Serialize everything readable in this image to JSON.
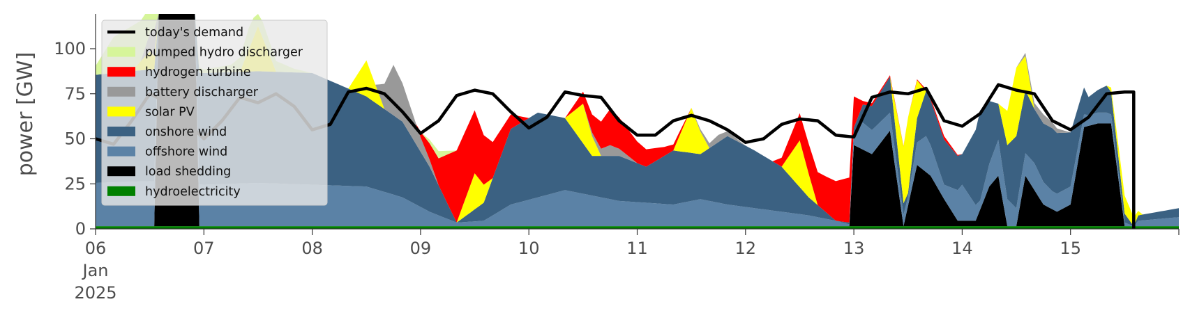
{
  "chart_data": {
    "type": "area",
    "title": "",
    "xlabel": "",
    "ylabel": "power [GW]",
    "ylim": [
      0,
      120
    ],
    "y_ticks": [
      0,
      25,
      50,
      75,
      100
    ],
    "x_start": "2025-01-06",
    "x_end": "2025-01-16",
    "x_ticks": [
      {
        "date": "2025-01-06",
        "label": "06",
        "sub": [
          "Jan",
          "2025"
        ]
      },
      {
        "date": "2025-01-07",
        "label": "07"
      },
      {
        "date": "2025-01-08",
        "label": "08"
      },
      {
        "date": "2025-01-09",
        "label": "09"
      },
      {
        "date": "2025-01-10",
        "label": "10"
      },
      {
        "date": "2025-01-11",
        "label": "11"
      },
      {
        "date": "2025-01-12",
        "label": "12"
      },
      {
        "date": "2025-01-13",
        "label": "13"
      },
      {
        "date": "2025-01-14",
        "label": "14"
      },
      {
        "date": "2025-01-15",
        "label": "15"
      }
    ],
    "legend_position": "top-left",
    "legend": [
      {
        "name": "today's demand",
        "color": "#000000",
        "kind": "line"
      },
      {
        "name": "pumped hydro discharger",
        "color": "#d6f59a",
        "kind": "patch"
      },
      {
        "name": "hydrogen turbine",
        "color": "#ff0000",
        "kind": "patch"
      },
      {
        "name": "battery discharger",
        "color": "#999999",
        "kind": "patch"
      },
      {
        "name": "solar PV",
        "color": "#ffff00",
        "kind": "patch"
      },
      {
        "name": "onshore wind",
        "color": "#3b6182",
        "kind": "patch"
      },
      {
        "name": "offshore wind",
        "color": "#5b82a6",
        "kind": "patch"
      },
      {
        "name": "load shedding",
        "color": "#000000",
        "kind": "patch"
      },
      {
        "name": "hydroelectricity",
        "color": "#008000",
        "kind": "patch"
      }
    ],
    "stack_order": [
      "hydroelectricity",
      "load shedding",
      "offshore wind",
      "onshore wind",
      "solar PV",
      "battery discharger",
      "hydrogen turbine",
      "pumped hydro discharger"
    ],
    "series": [
      {
        "name": "hydroelectricity",
        "color": "#008000",
        "x": [
          "2025-01-06 00:00",
          "2025-01-16 00:00"
        ],
        "values": [
          1.5,
          1.5
        ]
      },
      {
        "name": "load shedding",
        "color": "#000000",
        "x": [
          "2025-01-06 00:00",
          "2025-01-06 13:00",
          "2025-01-06 14:00",
          "2025-01-06 22:00",
          "2025-01-06 23:00",
          "2025-01-12 23:00",
          "2025-01-13 00:00",
          "2025-01-13 04:00",
          "2025-01-13 08:00",
          "2025-01-13 11:00",
          "2025-01-13 14:00",
          "2025-01-13 17:00",
          "2025-01-13 20:00",
          "2025-01-13 23:00",
          "2025-01-14 03:00",
          "2025-01-14 06:00",
          "2025-01-14 08:00",
          "2025-01-14 10:00",
          "2025-01-14 12:00",
          "2025-01-14 14:00",
          "2025-01-14 16:00",
          "2025-01-14 18:00",
          "2025-01-14 21:00",
          "2025-01-15 00:00",
          "2025-01-15 03:00",
          "2025-01-15 06:00",
          "2025-01-15 09:00",
          "2025-01-15 12:00",
          "2025-01-15 14:00",
          "2025-01-15 15:00",
          "2025-01-16 00:00"
        ],
        "values": [
          0,
          0,
          120,
          120,
          0,
          0,
          45,
          40,
          53,
          0,
          34,
          28,
          15,
          3,
          3,
          22,
          28,
          0,
          0,
          28,
          20,
          12,
          8,
          12,
          55,
          57,
          57,
          0,
          0,
          0,
          0
        ]
      },
      {
        "name": "offshore wind",
        "color": "#5b82a6",
        "x": [
          "2025-01-06 00:00",
          "2025-01-06 12:00",
          "2025-01-07 00:00",
          "2025-01-07 12:00",
          "2025-01-08 00:00",
          "2025-01-08 12:00",
          "2025-01-08 20:00",
          "2025-01-09 02:00",
          "2025-01-09 08:00",
          "2025-01-09 14:00",
          "2025-01-09 20:00",
          "2025-01-10 02:00",
          "2025-01-10 08:00",
          "2025-01-10 14:00",
          "2025-01-10 20:00",
          "2025-01-11 02:00",
          "2025-01-11 08:00",
          "2025-01-11 14:00",
          "2025-01-11 20:00",
          "2025-01-12 02:00",
          "2025-01-12 08:00",
          "2025-01-12 14:00",
          "2025-01-12 20:00",
          "2025-01-12 23:00",
          "2025-01-13 02:00",
          "2025-01-13 08:00",
          "2025-01-13 12:00",
          "2025-01-13 16:00",
          "2025-01-13 20:00",
          "2025-01-14 00:00",
          "2025-01-14 04:00",
          "2025-01-14 08:00",
          "2025-01-14 12:00",
          "2025-01-14 16:00",
          "2025-01-14 20:00",
          "2025-01-15 00:00",
          "2025-01-15 04:00",
          "2025-01-15 08:00",
          "2025-01-15 14:00",
          "2025-01-15 15:00",
          "2025-01-16 00:00"
        ],
        "values": [
          24,
          25,
          23,
          24,
          23,
          22,
          16,
          8,
          2,
          3,
          12,
          16,
          20,
          17,
          14,
          13,
          12,
          15,
          12,
          10,
          8,
          6,
          3,
          1,
          15,
          10,
          5,
          20,
          8,
          20,
          5,
          20,
          10,
          15,
          10,
          10,
          6,
          6,
          0,
          3,
          5
        ]
      },
      {
        "name": "onshore wind",
        "color": "#3b6182",
        "x": [
          "2025-01-06 00:00",
          "2025-01-06 12:00",
          "2025-01-07 00:00",
          "2025-01-07 12:00",
          "2025-01-08 00:00",
          "2025-01-08 12:00",
          "2025-01-08 20:00",
          "2025-01-09 02:00",
          "2025-01-09 08:00",
          "2025-01-09 14:00",
          "2025-01-09 20:00",
          "2025-01-10 02:00",
          "2025-01-10 08:00",
          "2025-01-10 14:00",
          "2025-01-10 20:00",
          "2025-01-11 02:00",
          "2025-01-11 08:00",
          "2025-01-11 14:00",
          "2025-01-11 20:00",
          "2025-01-12 02:00",
          "2025-01-12 08:00",
          "2025-01-12 14:00",
          "2025-01-12 20:00",
          "2025-01-12 23:00",
          "2025-01-13 02:00",
          "2025-01-13 08:00",
          "2025-01-13 12:00",
          "2025-01-13 16:00",
          "2025-01-13 20:00",
          "2025-01-14 00:00",
          "2025-01-14 04:00",
          "2025-01-14 08:00",
          "2025-01-14 12:00",
          "2025-01-14 16:00",
          "2025-01-14 20:00",
          "2025-01-15 00:00",
          "2025-01-15 04:00",
          "2025-01-15 08:00",
          "2025-01-15 14:00",
          "2025-01-15 15:00",
          "2025-01-16 00:00"
        ],
        "values": [
          60,
          62,
          62,
          62,
          62,
          50,
          42,
          25,
          0,
          10,
          42,
          47,
          40,
          22,
          25,
          20,
          30,
          25,
          38,
          32,
          25,
          10,
          0,
          1,
          10,
          20,
          2,
          25,
          25,
          17,
          50,
          20,
          40,
          30,
          35,
          30,
          10,
          15,
          0,
          3,
          5
        ]
      },
      {
        "name": "solar PV",
        "color": "#ffff00",
        "x": [
          "2025-01-06 00:00",
          "2025-01-06 08:00",
          "2025-01-06 12:00",
          "2025-01-06 16:00",
          "2025-01-07 00:00",
          "2025-01-07 08:00",
          "2025-01-07 12:00",
          "2025-01-07 16:00",
          "2025-01-08 00:00",
          "2025-01-08 08:00",
          "2025-01-08 12:00",
          "2025-01-08 16:00",
          "2025-01-09 00:00",
          "2025-01-09 08:00",
          "2025-01-09 12:00",
          "2025-01-09 16:00",
          "2025-01-10 00:00",
          "2025-01-10 08:00",
          "2025-01-10 12:00",
          "2025-01-10 16:00",
          "2025-01-11 00:00",
          "2025-01-11 08:00",
          "2025-01-11 12:00",
          "2025-01-11 16:00",
          "2025-01-12 00:00",
          "2025-01-12 08:00",
          "2025-01-12 12:00",
          "2025-01-12 16:00",
          "2025-01-13 00:00",
          "2025-01-13 08:00",
          "2025-01-13 12:00",
          "2025-01-13 16:00",
          "2025-01-14 00:00",
          "2025-01-14 08:00",
          "2025-01-14 12:00",
          "2025-01-14 16:00",
          "2025-01-15 00:00",
          "2025-01-15 08:00",
          "2025-01-15 12:00",
          "2025-01-15 16:00",
          "2025-01-16 00:00"
        ],
        "values": [
          0,
          0,
          10,
          0,
          0,
          0,
          25,
          0,
          0,
          0,
          20,
          0,
          0,
          0,
          20,
          0,
          0,
          0,
          22,
          0,
          0,
          0,
          25,
          0,
          0,
          0,
          26,
          0,
          0,
          0,
          42,
          0,
          0,
          0,
          38,
          0,
          0,
          0,
          10,
          0,
          0
        ]
      },
      {
        "name": "battery discharger",
        "color": "#999999",
        "x": [
          "2025-01-06 00:00",
          "2025-01-06 10:00",
          "2025-01-06 14:00",
          "2025-01-06 20:00",
          "2025-01-07 00:00",
          "2025-01-08 14:00",
          "2025-01-08 18:00",
          "2025-01-09 00:00",
          "2025-01-09 04:00",
          "2025-01-09 12:00",
          "2025-01-10 00:00",
          "2025-01-10 12:00",
          "2025-01-10 18:00",
          "2025-01-11 00:00",
          "2025-01-11 12:00",
          "2025-01-11 18:00",
          "2025-01-12 00:00",
          "2025-01-13 00:00",
          "2025-01-14 00:00",
          "2025-01-14 12:00",
          "2025-01-14 18:00",
          "2025-01-15 00:00",
          "2025-01-16 00:00"
        ],
        "values": [
          0,
          0,
          20,
          0,
          0,
          0,
          28,
          8,
          0,
          0,
          0,
          0,
          6,
          0,
          0,
          4,
          0,
          0,
          0,
          0,
          5,
          0,
          0
        ]
      },
      {
        "name": "hydrogen turbine",
        "color": "#ff0000",
        "x": [
          "2025-01-06 00:00",
          "2025-01-08 23:00",
          "2025-01-09 04:00",
          "2025-01-09 08:00",
          "2025-01-09 12:00",
          "2025-01-09 16:00",
          "2025-01-09 20:00",
          "2025-01-10 00:00",
          "2025-01-10 08:00",
          "2025-01-10 14:00",
          "2025-01-10 18:00",
          "2025-01-11 00:00",
          "2025-01-11 06:00",
          "2025-01-11 12:00",
          "2025-01-12 06:00",
          "2025-01-12 12:00",
          "2025-01-12 18:00",
          "2025-01-12 23:00",
          "2025-01-13 02:00",
          "2025-01-13 12:00",
          "2025-01-13 20:00",
          "2025-01-14 00:00",
          "2025-01-16 00:00"
        ],
        "values": [
          0,
          0,
          15,
          40,
          35,
          20,
          8,
          0,
          0,
          10,
          20,
          12,
          5,
          0,
          0,
          15,
          20,
          25,
          2,
          0,
          2,
          0,
          0
        ]
      },
      {
        "name": "pumped hydro discharger",
        "color": "#d6f59a",
        "x": [
          "2025-01-06 00:00",
          "2025-01-06 04:00",
          "2025-01-06 08:00",
          "2025-01-06 12:00",
          "2025-01-06 16:00",
          "2025-01-07 00:00",
          "2025-01-07 06:00",
          "2025-01-07 10:00",
          "2025-01-07 14:00",
          "2025-01-07 20:00",
          "2025-01-08 00:00",
          "2025-01-09 00:00",
          "2025-01-09 04:00",
          "2025-01-09 08:00",
          "2025-01-16 00:00"
        ],
        "values": [
          5,
          20,
          25,
          20,
          10,
          2,
          4,
          12,
          8,
          2,
          0,
          0,
          4,
          0,
          0
        ]
      },
      {
        "name": "today's demand",
        "color": "#000000",
        "x": [
          "2025-01-06 00:00",
          "2025-01-06 04:00",
          "2025-01-06 08:00",
          "2025-01-06 12:00",
          "2025-01-06 16:00",
          "2025-01-06 20:00",
          "2025-01-07 00:00",
          "2025-01-07 04:00",
          "2025-01-07 08:00",
          "2025-01-07 12:00",
          "2025-01-07 16:00",
          "2025-01-07 20:00",
          "2025-01-08 00:00",
          "2025-01-08 04:00",
          "2025-01-08 08:00",
          "2025-01-08 12:00",
          "2025-01-08 16:00",
          "2025-01-08 20:00",
          "2025-01-09 00:00",
          "2025-01-09 04:00",
          "2025-01-09 08:00",
          "2025-01-09 12:00",
          "2025-01-09 16:00",
          "2025-01-09 20:00",
          "2025-01-10 00:00",
          "2025-01-10 04:00",
          "2025-01-10 08:00",
          "2025-01-10 12:00",
          "2025-01-10 16:00",
          "2025-01-10 20:00",
          "2025-01-11 00:00",
          "2025-01-11 04:00",
          "2025-01-11 08:00",
          "2025-01-11 12:00",
          "2025-01-11 16:00",
          "2025-01-11 20:00",
          "2025-01-12 00:00",
          "2025-01-12 04:00",
          "2025-01-12 08:00",
          "2025-01-12 12:00",
          "2025-01-12 16:00",
          "2025-01-12 20:00",
          "2025-01-13 00:00",
          "2025-01-13 04:00",
          "2025-01-13 08:00",
          "2025-01-13 12:00",
          "2025-01-13 16:00",
          "2025-01-13 20:00",
          "2025-01-14 00:00",
          "2025-01-14 04:00",
          "2025-01-14 08:00",
          "2025-01-14 12:00",
          "2025-01-14 16:00",
          "2025-01-14 20:00",
          "2025-01-15 00:00",
          "2025-01-15 04:00",
          "2025-01-15 08:00",
          "2025-01-15 12:00",
          "2025-01-15 14:00"
        ],
        "values": [
          50,
          47,
          60,
          75,
          70,
          60,
          50,
          60,
          73,
          70,
          75,
          68,
          55,
          58,
          76,
          78,
          75,
          65,
          53,
          60,
          74,
          77,
          75,
          65,
          56,
          62,
          76,
          74,
          73,
          60,
          52,
          52,
          60,
          63,
          60,
          55,
          48,
          50,
          58,
          61,
          60,
          52,
          51,
          73,
          76,
          75,
          78,
          60,
          57,
          64,
          80,
          77,
          75,
          60,
          55,
          62,
          75,
          76,
          76
        ]
      }
    ]
  }
}
